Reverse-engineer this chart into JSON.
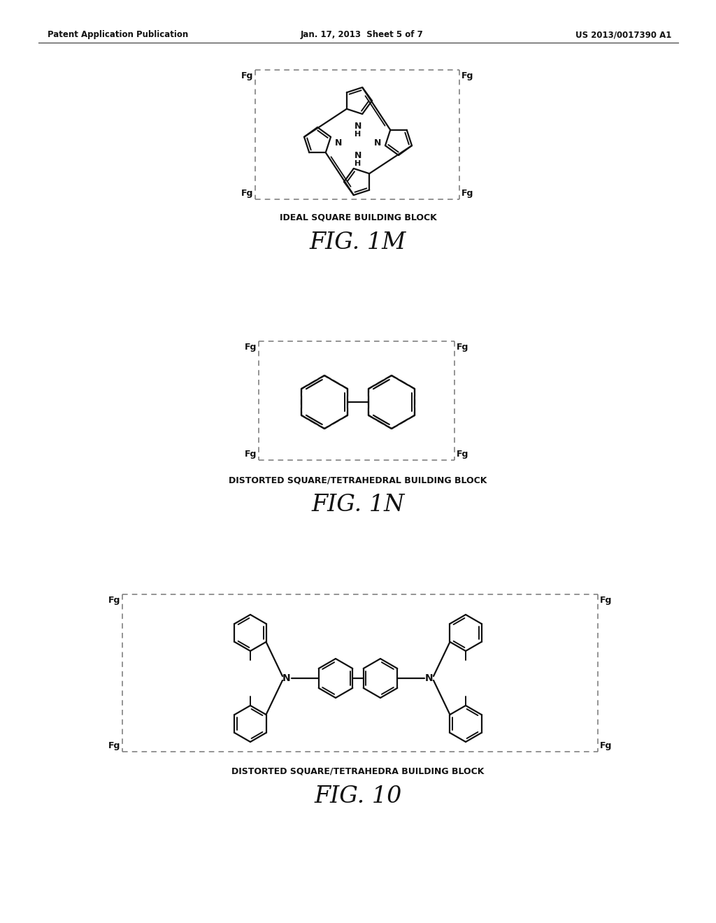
{
  "bg_color": "#ffffff",
  "header_left": "Patent Application Publication",
  "header_mid": "Jan. 17, 2013  Sheet 5 of 7",
  "header_right": "US 2013/0017390 A1",
  "fig1m_title_small": "IDEAL SQUARE BUILDING BLOCK",
  "fig1m_title_large": "FIG. 1M",
  "fig1n_title_small": "DISTORTED SQUARE/TETRAHEDRAL BUILDING BLOCK",
  "fig1n_title_large": "FIG. 1N",
  "fig1o_title_small": "DISTORTED SQUARE/TETRAHEDRA BUILDING BLOCK",
  "fig1o_title_large": "FIG. 10"
}
